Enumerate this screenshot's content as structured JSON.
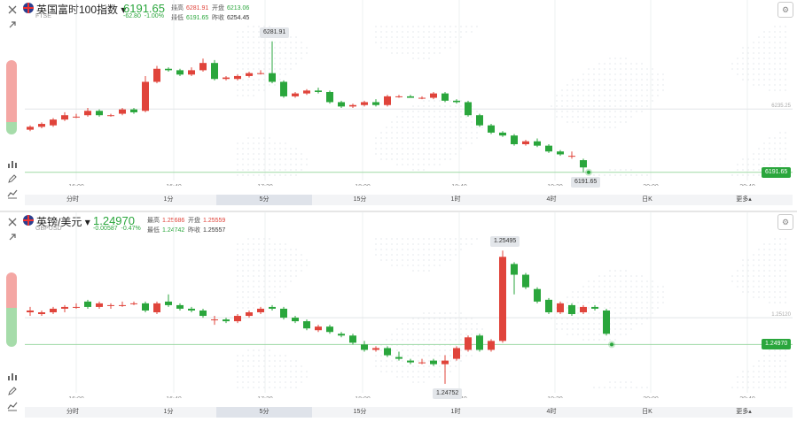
{
  "colors": {
    "up": "#e0443b",
    "down": "#2aa63c",
    "grid": "#eef0f2",
    "axis": "#888888"
  },
  "x_ticks": [
    "16:00",
    "16:40",
    "17:20",
    "18:00",
    "18:40",
    "19:20",
    "20:00",
    "20:40"
  ],
  "panels": [
    {
      "name": "英国富时100指数",
      "symbol": "FTSE",
      "price": "6191.65",
      "change": "-62.80",
      "change_pct": "-1.00%",
      "labels": {
        "high": "最高",
        "low": "最低",
        "open": "开盘",
        "prev": "昨收"
      },
      "high": "6281.91",
      "low": "6191.65",
      "open": "6213.06",
      "prev_close": "6254.45",
      "right_axis_label": "6235.25",
      "current_tag": "6191.65",
      "max_label": "6281.91",
      "min_label": "6191.65",
      "tabs": [
        "分时",
        "1分",
        "5分",
        "15分",
        "1时",
        "4时",
        "日K",
        "更多▴"
      ],
      "active_tab": 2
    },
    {
      "name": "英镑/美元",
      "symbol": "GBPUSD",
      "price": "1.24970",
      "change": "-0.00587",
      "change_pct": "-0.47%",
      "labels": {
        "high": "最高",
        "low": "最低",
        "open": "开盘",
        "prev": "昨收"
      },
      "high": "1.25686",
      "low": "1.24742",
      "open": "1.25559",
      "prev_close": "1.25557",
      "right_axis_label": "1.25120",
      "current_tag": "1.24970",
      "max_label": "1.25495",
      "min_label": "1.24752",
      "tabs": [
        "分时",
        "1分",
        "5分",
        "15分",
        "1时",
        "4时",
        "日K",
        "更多▴"
      ],
      "active_tab": 2
    }
  ],
  "chart_data": [
    {
      "type": "candlestick",
      "title": "英国富时100指数",
      "interval": "5分",
      "x_start": "15:40",
      "x_step_minutes": 5,
      "ohlc": [
        [
          6221.0,
          6224.0,
          6220.0,
          6223.0
        ],
        [
          6223.0,
          6226.0,
          6222.0,
          6225.0
        ],
        [
          6224.0,
          6229.0,
          6223.0,
          6228.0
        ],
        [
          6228.0,
          6233.0,
          6227.0,
          6231.0
        ],
        [
          6230.0,
          6232.0,
          6229.0,
          6230.0
        ],
        [
          6231.0,
          6236.0,
          6230.0,
          6234.0
        ],
        [
          6234.0,
          6235.0,
          6230.0,
          6231.0
        ],
        [
          6231.0,
          6232.0,
          6230.0,
          6231.0
        ],
        [
          6232.0,
          6236.0,
          6231.0,
          6235.0
        ],
        [
          6235.0,
          6236.0,
          6232.0,
          6233.0
        ],
        [
          6234.0,
          6258.0,
          6233.0,
          6254.0
        ],
        [
          6254.0,
          6265.0,
          6253.0,
          6263.0
        ],
        [
          6263.0,
          6264.0,
          6261.0,
          6262.0
        ],
        [
          6262.0,
          6263.0,
          6258.0,
          6259.0
        ],
        [
          6259.0,
          6264.0,
          6258.0,
          6262.0
        ],
        [
          6262.0,
          6270.0,
          6261.0,
          6267.0
        ],
        [
          6267.0,
          6269.0,
          6255.0,
          6256.0
        ],
        [
          6256.0,
          6258.0,
          6255.0,
          6257.0
        ],
        [
          6256.0,
          6259.0,
          6255.0,
          6258.0
        ],
        [
          6258.0,
          6261.0,
          6257.0,
          6260.0
        ],
        [
          6260.0,
          6262.0,
          6259.0,
          6260.0
        ],
        [
          6260.0,
          6281.91,
          6253.0,
          6254.0
        ],
        [
          6254.0,
          6255.0,
          6243.0,
          6244.0
        ],
        [
          6244.0,
          6247.0,
          6243.0,
          6246.0
        ],
        [
          6246.0,
          6249.0,
          6245.0,
          6248.0
        ],
        [
          6248.0,
          6250.0,
          6246.0,
          6247.0
        ],
        [
          6247.0,
          6248.0,
          6239.0,
          6240.0
        ],
        [
          6240.0,
          6241.0,
          6236.0,
          6237.0
        ],
        [
          6237.0,
          6239.0,
          6236.0,
          6238.0
        ],
        [
          6238.0,
          6241.0,
          6237.0,
          6240.0
        ],
        [
          6240.0,
          6242.0,
          6237.0,
          6238.0
        ],
        [
          6238.0,
          6245.0,
          6237.0,
          6244.0
        ],
        [
          6244.0,
          6245.0,
          6243.0,
          6244.0
        ],
        [
          6244.0,
          6245.0,
          6243.0,
          6243.0
        ],
        [
          6243.0,
          6244.0,
          6242.0,
          6243.0
        ],
        [
          6243.0,
          6247.0,
          6242.0,
          6246.0
        ],
        [
          6246.0,
          6247.0,
          6240.0,
          6241.0
        ],
        [
          6241.0,
          6242.0,
          6239.0,
          6240.0
        ],
        [
          6240.0,
          6241.0,
          6230.0,
          6231.0
        ],
        [
          6231.0,
          6232.0,
          6223.0,
          6224.0
        ],
        [
          6224.0,
          6225.0,
          6218.0,
          6219.0
        ],
        [
          6219.0,
          6220.0,
          6216.0,
          6217.0
        ],
        [
          6217.0,
          6218.0,
          6210.0,
          6211.0
        ],
        [
          6211.0,
          6214.0,
          6210.0,
          6213.0
        ],
        [
          6213.0,
          6215.0,
          6209.0,
          6210.0
        ],
        [
          6210.0,
          6211.0,
          6205.0,
          6206.0
        ],
        [
          6206.0,
          6207.0,
          6203.0,
          6204.0
        ],
        [
          6203.0,
          6206.0,
          6201.0,
          6203.0
        ],
        [
          6200.0,
          6201.0,
          6191.65,
          6195.0
        ]
      ],
      "ylim": [
        6186,
        6297
      ],
      "reference_line": 6235.25,
      "current": 6191.65
    },
    {
      "type": "candlestick",
      "title": "英镑/美元",
      "interval": "5分",
      "x_start": "15:40",
      "x_step_minutes": 5,
      "ohlc": [
        [
          1.2515,
          1.2518,
          1.2513,
          1.2516
        ],
        [
          1.2514,
          1.2516,
          1.2513,
          1.2515
        ],
        [
          1.2515,
          1.2518,
          1.2514,
          1.2517
        ],
        [
          1.2517,
          1.2519,
          1.2515,
          1.2518
        ],
        [
          1.2518,
          1.252,
          1.2517,
          1.2518
        ],
        [
          1.2521,
          1.2522,
          1.2517,
          1.2518
        ],
        [
          1.2518,
          1.2521,
          1.2517,
          1.252
        ],
        [
          1.2519,
          1.252,
          1.2517,
          1.2519
        ],
        [
          1.2519,
          1.2521,
          1.2518,
          1.2519
        ],
        [
          1.252,
          1.2521,
          1.2519,
          1.252
        ],
        [
          1.252,
          1.2521,
          1.2515,
          1.2516
        ],
        [
          1.2515,
          1.2521,
          1.2514,
          1.252
        ],
        [
          1.2521,
          1.2525,
          1.2518,
          1.2519
        ],
        [
          1.2519,
          1.252,
          1.2516,
          1.2517
        ],
        [
          1.2517,
          1.2518,
          1.2515,
          1.2516
        ],
        [
          1.2516,
          1.2517,
          1.2512,
          1.2513
        ],
        [
          1.2511,
          1.2513,
          1.2508,
          1.2511
        ],
        [
          1.2511,
          1.2512,
          1.2509,
          1.251
        ],
        [
          1.251,
          1.2514,
          1.2509,
          1.2513
        ],
        [
          1.2513,
          1.2516,
          1.2512,
          1.2515
        ],
        [
          1.2515,
          1.2518,
          1.2514,
          1.2517
        ],
        [
          1.2518,
          1.2519,
          1.2516,
          1.2517
        ],
        [
          1.2517,
          1.2518,
          1.2511,
          1.2512
        ],
        [
          1.2512,
          1.2513,
          1.2509,
          1.251
        ],
        [
          1.251,
          1.2511,
          1.2505,
          1.2506
        ],
        [
          1.2505,
          1.2508,
          1.2504,
          1.2507
        ],
        [
          1.2507,
          1.2508,
          1.2503,
          1.2504
        ],
        [
          1.2503,
          1.2504,
          1.2501,
          1.2502
        ],
        [
          1.2502,
          1.2503,
          1.2497,
          1.2498
        ],
        [
          1.2497,
          1.2499,
          1.2493,
          1.2494
        ],
        [
          1.2494,
          1.2496,
          1.2493,
          1.2495
        ],
        [
          1.2495,
          1.2496,
          1.249,
          1.2491
        ],
        [
          1.249,
          1.2493,
          1.2488,
          1.2489
        ],
        [
          1.2488,
          1.2489,
          1.2486,
          1.2487
        ],
        [
          1.2487,
          1.2489,
          1.2486,
          1.2487
        ],
        [
          1.2488,
          1.2489,
          1.2485,
          1.2486
        ],
        [
          1.2486,
          1.2491,
          1.2475,
          1.2488
        ],
        [
          1.2489,
          1.2496,
          1.2488,
          1.2495
        ],
        [
          1.2494,
          1.2502,
          1.2493,
          1.2501
        ],
        [
          1.2502,
          1.2503,
          1.2493,
          1.2494
        ],
        [
          1.2494,
          1.25,
          1.2493,
          1.2499
        ],
        [
          1.2499,
          1.25495,
          1.2498,
          1.2546
        ],
        [
          1.2542,
          1.2543,
          1.2525,
          1.2536
        ],
        [
          1.2536,
          1.2537,
          1.2528,
          1.2529
        ],
        [
          1.2528,
          1.2529,
          1.252,
          1.2521
        ],
        [
          1.2522,
          1.2523,
          1.2514,
          1.2515
        ],
        [
          1.2515,
          1.2521,
          1.2514,
          1.252
        ],
        [
          1.2519,
          1.252,
          1.2513,
          1.2514
        ],
        [
          1.2515,
          1.2519,
          1.2514,
          1.2518
        ],
        [
          1.2518,
          1.2519,
          1.2516,
          1.2517
        ],
        [
          1.2516,
          1.2517,
          1.2502,
          1.2503
        ]
      ],
      "ylim": [
        1.247,
        1.256
      ],
      "reference_line": 1.2512,
      "current": 1.2497
    }
  ]
}
